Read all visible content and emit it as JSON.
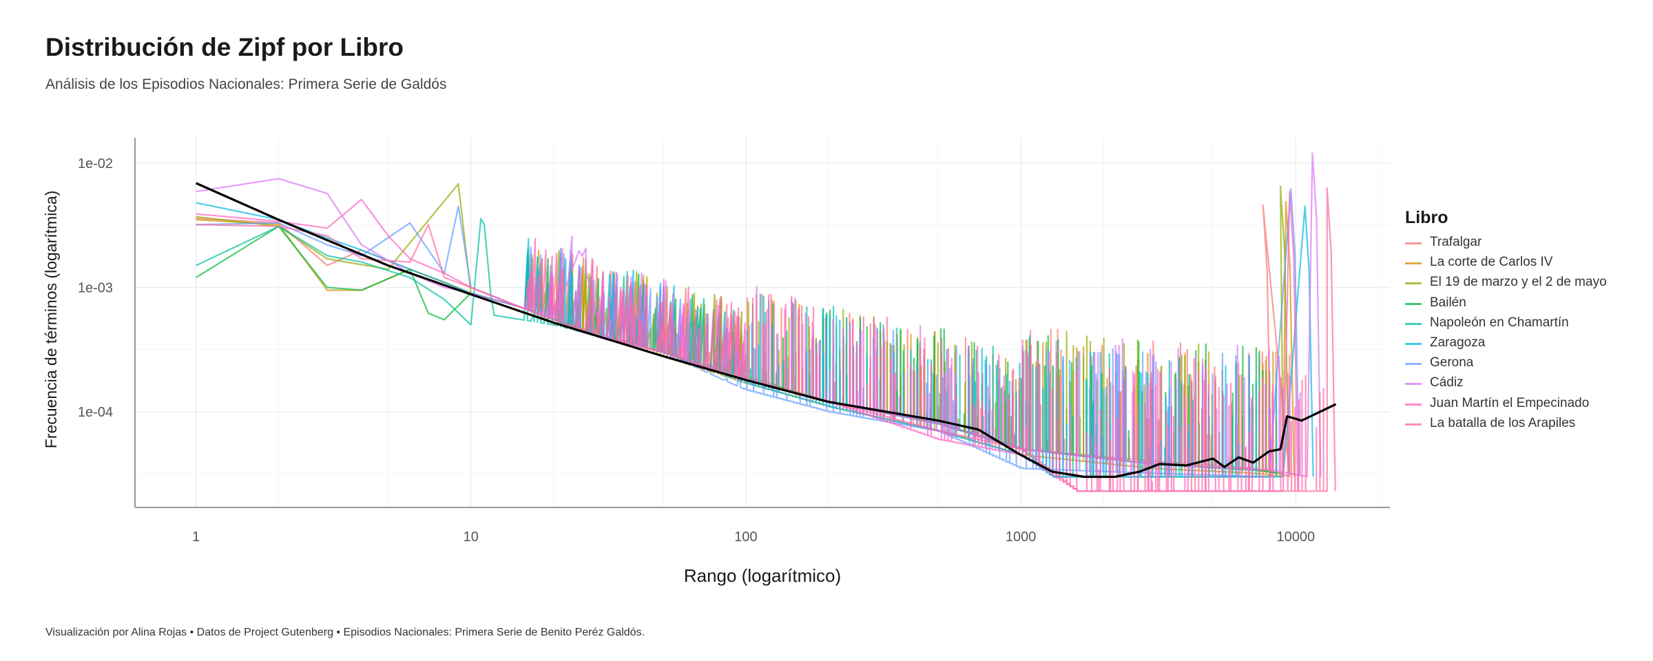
{
  "title": "Distribución de Zipf por Libro",
  "subtitle": "Análisis de los Episodios Nacionales: Primera Serie de Galdós",
  "caption": "Visualización por Alina Rojas  •  Datos de Project Gutenberg  •  Episodios Nacionales: Primera Serie de Benito Peréz Galdós.",
  "legend_title": "Libro",
  "chart_data": {
    "type": "line",
    "title": "Distribución de Zipf por Libro",
    "subtitle": "Análisis de los Episodios Nacionales: Primera Serie de Galdós",
    "xlabel": "Rango (logarítmico)",
    "ylabel": "Frecuencia de términos (logarítmica)",
    "x_scale": "log10",
    "y_scale": "log10",
    "xlim": [
      0.6,
      22000
    ],
    "ylim": [
      1.7e-05,
      0.016
    ],
    "x_ticks": [
      1,
      10,
      100,
      1000,
      10000
    ],
    "x_tick_labels": [
      "1",
      "10",
      "100",
      "1000",
      "10000"
    ],
    "y_ticks": [
      0.01,
      0.001,
      0.0001
    ],
    "y_tick_labels": [
      "1e-02",
      "1e-03",
      "1e-04"
    ],
    "grid": true,
    "legend_position": "right",
    "series": [
      {
        "name": "Trafalgar",
        "color": "#F8766D",
        "points": [
          [
            1,
            0.0036
          ],
          [
            2,
            0.0033
          ],
          [
            3,
            0.0015
          ],
          [
            4,
            0.002
          ],
          [
            6,
            0.0014
          ],
          [
            8,
            0.0011
          ],
          [
            10,
            0.0009
          ],
          [
            15,
            0.0007
          ],
          [
            20,
            0.00055
          ],
          [
            30,
            0.00042
          ],
          [
            50,
            0.0003
          ],
          [
            100,
            0.00018
          ],
          [
            200,
            0.00012
          ],
          [
            500,
            8e-05
          ],
          [
            1000,
            5e-05
          ],
          [
            3000,
            4e-05
          ],
          [
            7000,
            3.5e-05
          ],
          [
            8000,
            3.3e-05
          ],
          [
            9500,
            3e-05
          ]
        ],
        "spike": [
          7600,
          0.0046
        ]
      },
      {
        "name": "La corte de Carlos IV",
        "color": "#D39200",
        "points": [
          [
            1,
            0.0035
          ],
          [
            2,
            0.0032
          ],
          [
            3,
            0.00095
          ],
          [
            4,
            0.00095
          ],
          [
            6,
            0.0014
          ],
          [
            8,
            0.0011
          ],
          [
            10,
            0.0009
          ],
          [
            15,
            0.0007
          ],
          [
            20,
            0.00052
          ],
          [
            30,
            0.0004
          ],
          [
            50,
            0.00028
          ],
          [
            100,
            0.00017
          ],
          [
            200,
            0.00011
          ],
          [
            500,
            7e-05
          ],
          [
            1000,
            4.5e-05
          ],
          [
            3000,
            3.5e-05
          ],
          [
            7000,
            3.2e-05
          ],
          [
            9000,
            3e-05
          ]
        ],
        "spike": [
          9200,
          0.0049
        ]
      },
      {
        "name": "El 19 de marzo y el 2 de mayo",
        "color": "#93AA00",
        "points": [
          [
            1,
            0.0037
          ],
          [
            2,
            0.0031
          ],
          [
            3,
            0.0017
          ],
          [
            5,
            0.0014
          ],
          [
            9,
            0.0068
          ],
          [
            10,
            0.0009
          ],
          [
            15,
            0.0007
          ],
          [
            20,
            0.00055
          ],
          [
            30,
            0.00042
          ],
          [
            50,
            0.0003
          ],
          [
            100,
            0.00019
          ],
          [
            200,
            0.00012
          ],
          [
            500,
            8e-05
          ],
          [
            1000,
            5e-05
          ],
          [
            3000,
            3.8e-05
          ],
          [
            7000,
            3.4e-05
          ],
          [
            9000,
            3.2e-05
          ]
        ],
        "spike": [
          8800,
          0.0065
        ]
      },
      {
        "name": "Bailén",
        "color": "#00BA38",
        "points": [
          [
            1,
            0.0012
          ],
          [
            2,
            0.0031
          ],
          [
            3,
            0.001
          ],
          [
            4,
            0.00095
          ],
          [
            6,
            0.0014
          ],
          [
            7,
            0.00062
          ],
          [
            8,
            0.00055
          ],
          [
            10,
            0.0009
          ],
          [
            15,
            0.0007
          ],
          [
            20,
            0.00055
          ],
          [
            30,
            0.0004
          ],
          [
            50,
            0.0003
          ],
          [
            100,
            0.00018
          ],
          [
            200,
            0.00012
          ],
          [
            500,
            8e-05
          ],
          [
            1000,
            5e-05
          ],
          [
            3000,
            3.8e-05
          ],
          [
            7000,
            3.4e-05
          ],
          [
            8500,
            3.2e-05
          ]
        ],
        "spike": null
      },
      {
        "name": "Napoleón en Chamartín",
        "color": "#00C19F",
        "points": [
          [
            1,
            0.0015
          ],
          [
            2,
            0.0031
          ],
          [
            3,
            0.0018
          ],
          [
            4,
            0.0016
          ],
          [
            6,
            0.0012
          ],
          [
            8,
            0.0008
          ],
          [
            10,
            0.0005
          ],
          [
            11,
            0.0047
          ],
          [
            12,
            0.0006
          ],
          [
            20,
            0.0005
          ],
          [
            30,
            0.0004
          ],
          [
            50,
            0.0003
          ],
          [
            100,
            0.00018
          ],
          [
            200,
            0.00012
          ],
          [
            500,
            8e-05
          ],
          [
            1000,
            5e-05
          ],
          [
            1300,
            3e-05
          ],
          [
            3000,
            3e-05
          ],
          [
            8000,
            3e-05
          ]
        ],
        "spike": null
      },
      {
        "name": "Zaragoza",
        "color": "#00B9E3",
        "points": [
          [
            1,
            0.0048
          ],
          [
            2,
            0.0035
          ],
          [
            3,
            0.0025
          ],
          [
            4,
            0.002
          ],
          [
            6,
            0.0014
          ],
          [
            8,
            0.0011
          ],
          [
            10,
            0.0009
          ],
          [
            15,
            0.0007
          ],
          [
            20,
            0.00055
          ],
          [
            30,
            0.0004
          ],
          [
            50,
            0.0003
          ],
          [
            100,
            0.00017
          ],
          [
            200,
            0.00011
          ],
          [
            500,
            7e-05
          ],
          [
            1000,
            4.5e-05
          ],
          [
            1300,
            3e-05
          ],
          [
            3000,
            3e-05
          ],
          [
            9000,
            3e-05
          ]
        ],
        "spike": [
          10800,
          0.0045
        ]
      },
      {
        "name": "Gerona",
        "color": "#619CFF",
        "points": [
          [
            1,
            0.0032
          ],
          [
            2,
            0.0033
          ],
          [
            3,
            0.0022
          ],
          [
            4,
            0.0018
          ],
          [
            6,
            0.0033
          ],
          [
            8,
            0.0013
          ],
          [
            9,
            0.0045
          ],
          [
            10,
            0.001
          ],
          [
            15,
            0.0007
          ],
          [
            20,
            0.00055
          ],
          [
            30,
            0.0004
          ],
          [
            50,
            0.0003
          ],
          [
            100,
            0.00015
          ],
          [
            200,
            0.0001
          ],
          [
            500,
            7e-05
          ],
          [
            1000,
            3.5e-05
          ],
          [
            3000,
            3.2e-05
          ],
          [
            8000,
            3e-05
          ]
        ],
        "spike": [
          9600,
          0.0062
        ]
      },
      {
        "name": "Cádiz",
        "color": "#DB72FB",
        "points": [
          [
            1,
            0.0059
          ],
          [
            2,
            0.0075
          ],
          [
            3,
            0.0057
          ],
          [
            4,
            0.0022
          ],
          [
            6,
            0.0013
          ],
          [
            8,
            0.001
          ],
          [
            10,
            0.0009
          ],
          [
            15,
            0.0007
          ],
          [
            20,
            0.00055
          ],
          [
            25,
            0.0021
          ],
          [
            30,
            0.0004
          ],
          [
            50,
            0.0003
          ],
          [
            100,
            0.00018
          ],
          [
            200,
            0.00012
          ],
          [
            500,
            8e-05
          ],
          [
            1000,
            5e-05
          ],
          [
            3000,
            3.8e-05
          ],
          [
            8000,
            3.4e-05
          ],
          [
            11000,
            3e-05
          ]
        ],
        "spike": [
          11500,
          0.012
        ]
      },
      {
        "name": "Juan Martín el Empecinado",
        "color": "#FF61C3",
        "points": [
          [
            1,
            0.0039
          ],
          [
            2,
            0.0034
          ],
          [
            3,
            0.003
          ],
          [
            4,
            0.0051
          ],
          [
            5,
            0.0026
          ],
          [
            6,
            0.0017
          ],
          [
            8,
            0.0013
          ],
          [
            10,
            0.001
          ],
          [
            15,
            0.0007
          ],
          [
            20,
            0.00055
          ],
          [
            30,
            0.0004
          ],
          [
            50,
            0.0003
          ],
          [
            100,
            0.00018
          ],
          [
            200,
            0.00012
          ],
          [
            500,
            6e-05
          ],
          [
            1000,
            4.5e-05
          ],
          [
            1600,
            2.3e-05
          ],
          [
            3000,
            2.3e-05
          ],
          [
            9000,
            2.3e-05
          ]
        ],
        "spike": [
          9500,
          0.0059
        ]
      },
      {
        "name": "La batalla de los Arapiles",
        "color": "#FF689F",
        "points": [
          [
            1,
            0.0032
          ],
          [
            2,
            0.0031
          ],
          [
            3,
            0.0026
          ],
          [
            4,
            0.0017
          ],
          [
            6,
            0.0016
          ],
          [
            7,
            0.0032
          ],
          [
            8,
            0.0012
          ],
          [
            10,
            0.001
          ],
          [
            15,
            0.0007
          ],
          [
            20,
            0.00055
          ],
          [
            30,
            0.0004
          ],
          [
            50,
            0.0003
          ],
          [
            100,
            0.00018
          ],
          [
            200,
            0.00012
          ],
          [
            500,
            7e-05
          ],
          [
            1000,
            5e-05
          ],
          [
            1600,
            2.3e-05
          ],
          [
            3000,
            2.3e-05
          ],
          [
            13000,
            2.3e-05
          ]
        ],
        "spike": [
          13000,
          0.0063
        ]
      }
    ],
    "trend": {
      "color": "#000000",
      "points": [
        [
          1,
          0.0069
        ],
        [
          2,
          0.0035
        ],
        [
          3,
          0.0024
        ],
        [
          5,
          0.0015
        ],
        [
          10,
          0.00088
        ],
        [
          20,
          0.00052
        ],
        [
          50,
          0.00028
        ],
        [
          100,
          0.00018
        ],
        [
          200,
          0.00012
        ],
        [
          500,
          8.5e-05
        ],
        [
          700,
          7.2e-05
        ],
        [
          1000,
          4.5e-05
        ],
        [
          1300,
          3.3e-05
        ],
        [
          1700,
          3e-05
        ],
        [
          2200,
          3e-05
        ],
        [
          2700,
          3.3e-05
        ],
        [
          3200,
          3.8e-05
        ],
        [
          4000,
          3.7e-05
        ],
        [
          5000,
          4.2e-05
        ],
        [
          5500,
          3.6e-05
        ],
        [
          6200,
          4.3e-05
        ],
        [
          7000,
          3.9e-05
        ],
        [
          8000,
          4.8e-05
        ],
        [
          8800,
          5e-05
        ],
        [
          9300,
          9.2e-05
        ],
        [
          10500,
          8.5e-05
        ],
        [
          14000,
          0.000115
        ]
      ]
    }
  }
}
